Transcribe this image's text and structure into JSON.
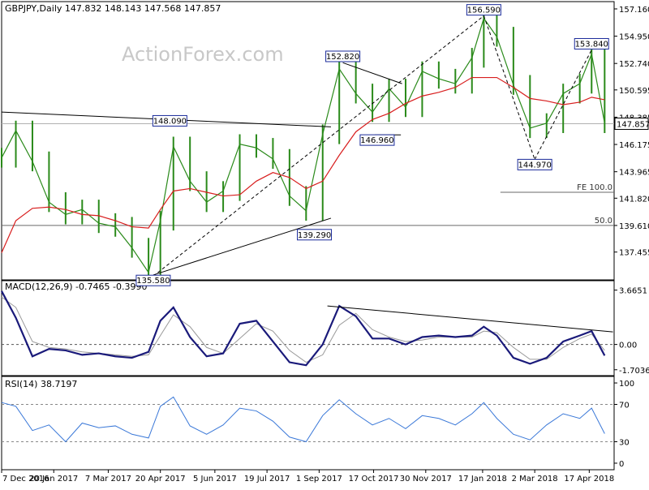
{
  "header": {
    "symbol_line": "GBPJPY,Daily  147.832 148.143 147.568 147.857",
    "watermark": "ActionForex.com"
  },
  "chart_data": [
    {
      "type": "candlestick",
      "panel": "price",
      "y_ticks": [
        137.455,
        139.61,
        141.82,
        143.965,
        146.175,
        148.385,
        150.595,
        152.74,
        154.95,
        157.16
      ],
      "y_tick_labels": [
        "137.455",
        "139.610",
        "141.820",
        "143.965",
        "146.175",
        "148.385",
        "150.595",
        "152.740",
        "154.950",
        "157.160"
      ],
      "ylim": [
        135.2,
        157.75
      ],
      "current_price": 147.857,
      "current_price_label": "147.857",
      "series": [
        {
          "name": "price",
          "x": [
            "2016-12-07",
            "2016-12-19",
            "2017-01-02",
            "2017-01-16",
            "2017-01-30",
            "2017-02-13",
            "2017-02-27",
            "2017-03-13",
            "2017-03-27",
            "2017-04-10",
            "2017-04-20",
            "2017-05-01",
            "2017-05-15",
            "2017-05-29",
            "2017-06-12",
            "2017-06-26",
            "2017-07-10",
            "2017-07-24",
            "2017-08-07",
            "2017-08-21",
            "2017-09-04",
            "2017-09-18",
            "2017-10-02",
            "2017-10-16",
            "2017-10-30",
            "2017-11-13",
            "2017-11-27",
            "2017-12-11",
            "2017-12-25",
            "2018-01-08",
            "2018-01-18",
            "2018-01-29",
            "2018-02-12",
            "2018-02-26",
            "2018-03-12",
            "2018-03-26",
            "2018-04-09",
            "2018-04-19",
            "2018-04-30"
          ],
          "values": [
            145.1,
            147.3,
            144.8,
            141.5,
            140.5,
            140.9,
            139.8,
            139.5,
            137.8,
            135.8,
            140.0,
            146.0,
            143.2,
            141.5,
            142.4,
            146.2,
            145.9,
            145.0,
            142.0,
            140.8,
            147.0,
            152.3,
            150.3,
            148.8,
            150.7,
            149.2,
            152.1,
            151.5,
            151.1,
            153.2,
            156.4,
            154.9,
            151.0,
            147.5,
            147.9,
            150.3,
            151.1,
            153.5,
            147.9
          ]
        },
        {
          "name": "moving_average",
          "x": [
            "2016-12-07",
            "2016-12-19",
            "2017-01-02",
            "2017-01-16",
            "2017-01-30",
            "2017-02-13",
            "2017-02-27",
            "2017-03-13",
            "2017-03-27",
            "2017-04-10",
            "2017-04-20",
            "2017-05-01",
            "2017-05-15",
            "2017-05-29",
            "2017-06-12",
            "2017-06-26",
            "2017-07-10",
            "2017-07-24",
            "2017-08-07",
            "2017-08-21",
            "2017-09-04",
            "2017-09-18",
            "2017-10-02",
            "2017-10-16",
            "2017-10-30",
            "2017-11-13",
            "2017-11-27",
            "2017-12-11",
            "2017-12-25",
            "2018-01-08",
            "2018-01-18",
            "2018-01-29",
            "2018-02-12",
            "2018-02-26",
            "2018-03-12",
            "2018-03-26",
            "2018-04-09",
            "2018-04-19",
            "2018-04-30"
          ],
          "values": [
            137.4,
            140.0,
            141.0,
            141.1,
            140.9,
            140.5,
            140.4,
            140.0,
            139.5,
            139.4,
            140.9,
            142.4,
            142.6,
            142.3,
            142.0,
            142.1,
            143.2,
            143.9,
            143.5,
            142.6,
            143.2,
            145.3,
            147.2,
            148.2,
            148.7,
            149.5,
            150.1,
            150.4,
            150.8,
            151.6,
            151.6,
            151.6,
            150.8,
            149.9,
            149.7,
            149.4,
            149.6,
            150.0,
            149.8
          ]
        }
      ],
      "annotations": [
        {
          "label": "156.590",
          "date": "2018-01-18",
          "value": 156.59
        },
        {
          "label": "153.840",
          "date": "2018-04-19",
          "value": 153.84
        },
        {
          "label": "152.820",
          "date": "2017-09-21",
          "value": 152.82
        },
        {
          "label": "148.090",
          "date": "2017-04-28",
          "value": 148.09
        },
        {
          "label": "146.960",
          "date": "2017-10-20",
          "value": 146.96
        },
        {
          "label": "144.970",
          "date": "2018-03-02",
          "value": 144.97
        },
        {
          "label": "139.290",
          "date": "2017-08-28",
          "value": 139.29
        },
        {
          "label": "135.580",
          "date": "2017-04-14",
          "value": 135.58
        }
      ],
      "levels": [
        {
          "label": "FE 100.0",
          "value": 142.3
        },
        {
          "label": "50.0",
          "value": 139.61
        }
      ],
      "trendlines": [
        {
          "from": {
            "date": "2016-12-07",
            "value": 148.8
          },
          "to": {
            "date": "2017-09-11",
            "value": 147.6
          }
        },
        {
          "from": {
            "date": "2017-04-14",
            "value": 135.6
          },
          "to": {
            "date": "2017-09-11",
            "value": 140.2
          }
        },
        {
          "from": {
            "date": "2017-09-21",
            "value": 152.8
          },
          "to": {
            "date": "2017-11-10",
            "value": 151.1
          }
        },
        {
          "from": {
            "date": "2017-10-18",
            "value": 146.95
          },
          "to": {
            "date": "2017-11-09",
            "value": 146.95
          }
        },
        {
          "from": {
            "date": "2017-04-14",
            "value": 135.5
          },
          "to": {
            "date": "2018-01-18",
            "value": 156.6
          }
        },
        {
          "from": {
            "date": "2018-01-18",
            "value": 156.6
          },
          "to": {
            "date": "2018-03-02",
            "value": 144.97
          }
        },
        {
          "from": {
            "date": "2018-03-02",
            "value": 144.97
          },
          "to": {
            "date": "2018-04-19",
            "value": 153.84
          }
        }
      ]
    },
    {
      "type": "line",
      "panel": "macd",
      "title": "MACD(12,26,9) -0.7465 -0.3990",
      "y_ticks": [
        3.6651,
        0.0,
        -1.7036
      ],
      "y_tick_labels": [
        "3.6651",
        "0.00",
        "-1.7036"
      ],
      "ylim": [
        -2.1,
        4.3
      ],
      "series": [
        {
          "name": "macd",
          "x": [
            "2016-12-07",
            "2016-12-19",
            "2017-01-02",
            "2017-01-16",
            "2017-01-30",
            "2017-02-13",
            "2017-02-27",
            "2017-03-13",
            "2017-03-27",
            "2017-04-10",
            "2017-04-20",
            "2017-05-01",
            "2017-05-15",
            "2017-05-29",
            "2017-06-12",
            "2017-06-26",
            "2017-07-10",
            "2017-07-24",
            "2017-08-07",
            "2017-08-21",
            "2017-09-04",
            "2017-09-18",
            "2017-10-02",
            "2017-10-16",
            "2017-10-30",
            "2017-11-13",
            "2017-11-27",
            "2017-12-11",
            "2017-12-25",
            "2018-01-08",
            "2018-01-18",
            "2018-01-29",
            "2018-02-12",
            "2018-02-26",
            "2018-03-12",
            "2018-03-26",
            "2018-04-09",
            "2018-04-19",
            "2018-04-30"
          ],
          "values": [
            3.6,
            1.8,
            -0.8,
            -0.3,
            -0.4,
            -0.7,
            -0.6,
            -0.8,
            -0.9,
            -0.5,
            1.6,
            2.5,
            0.5,
            -0.8,
            -0.6,
            1.4,
            1.6,
            0.2,
            -1.2,
            -1.4,
            0.0,
            2.6,
            1.9,
            0.4,
            0.4,
            0.0,
            0.5,
            0.6,
            0.5,
            0.6,
            1.2,
            0.6,
            -0.9,
            -1.3,
            -0.9,
            0.2,
            0.6,
            0.9,
            -0.75
          ]
        },
        {
          "name": "signal",
          "x": [
            "2016-12-07",
            "2016-12-19",
            "2017-01-02",
            "2017-01-16",
            "2017-01-30",
            "2017-02-13",
            "2017-02-27",
            "2017-03-13",
            "2017-03-27",
            "2017-04-10",
            "2017-04-20",
            "2017-05-01",
            "2017-05-15",
            "2017-05-29",
            "2017-06-12",
            "2017-06-26",
            "2017-07-10",
            "2017-07-24",
            "2017-08-07",
            "2017-08-21",
            "2017-09-04",
            "2017-09-18",
            "2017-10-02",
            "2017-10-16",
            "2017-10-30",
            "2017-11-13",
            "2017-11-27",
            "2017-12-11",
            "2017-12-25",
            "2018-01-08",
            "2018-01-18",
            "2018-01-29",
            "2018-02-12",
            "2018-02-26",
            "2018-03-12",
            "2018-03-26",
            "2018-04-09",
            "2018-04-19",
            "2018-04-30"
          ],
          "values": [
            3.2,
            2.5,
            0.2,
            -0.2,
            -0.3,
            -0.5,
            -0.6,
            -0.7,
            -0.8,
            -0.7,
            0.6,
            2.0,
            1.2,
            -0.2,
            -0.6,
            0.4,
            1.4,
            0.9,
            -0.4,
            -1.2,
            -0.7,
            1.3,
            2.1,
            1.0,
            0.5,
            0.2,
            0.3,
            0.5,
            0.5,
            0.5,
            0.9,
            0.8,
            -0.2,
            -1.0,
            -1.0,
            -0.2,
            0.4,
            0.7,
            -0.4
          ]
        }
      ],
      "trendlines": [
        {
          "from": {
            "date": "2017-09-08",
            "value": 2.6
          },
          "to": {
            "date": "2018-05-07",
            "value": 0.85
          }
        }
      ]
    },
    {
      "type": "line",
      "panel": "rsi",
      "title": "RSI(14) 38.7197",
      "y_ticks": [
        70,
        30
      ],
      "y_tick_labels": [
        "70",
        "30"
      ],
      "y_axis_labels": [
        {
          "value": 93,
          "label": "100"
        },
        {
          "value": 70,
          "label": "70"
        },
        {
          "value": 30,
          "label": "30"
        },
        {
          "value": 7,
          "label": "0"
        }
      ],
      "ylim": [
        0,
        100
      ],
      "series": [
        {
          "name": "rsi",
          "x": [
            "2016-12-07",
            "2016-12-19",
            "2017-01-02",
            "2017-01-16",
            "2017-01-30",
            "2017-02-13",
            "2017-02-27",
            "2017-03-13",
            "2017-03-27",
            "2017-04-10",
            "2017-04-20",
            "2017-05-01",
            "2017-05-15",
            "2017-05-29",
            "2017-06-12",
            "2017-06-26",
            "2017-07-10",
            "2017-07-24",
            "2017-08-07",
            "2017-08-21",
            "2017-09-04",
            "2017-09-18",
            "2017-10-02",
            "2017-10-16",
            "2017-10-30",
            "2017-11-13",
            "2017-11-27",
            "2017-12-11",
            "2017-12-25",
            "2018-01-08",
            "2018-01-18",
            "2018-01-29",
            "2018-02-12",
            "2018-02-26",
            "2018-03-12",
            "2018-03-26",
            "2018-04-09",
            "2018-04-19",
            "2018-04-30"
          ],
          "values": [
            72,
            68,
            42,
            48,
            30,
            50,
            45,
            47,
            38,
            34,
            68,
            78,
            47,
            38,
            48,
            66,
            63,
            52,
            35,
            30,
            58,
            75,
            60,
            48,
            55,
            44,
            58,
            55,
            48,
            60,
            72,
            55,
            38,
            32,
            48,
            60,
            55,
            66,
            38.7
          ]
        }
      ]
    }
  ],
  "x_axis": {
    "ticks": [
      {
        "date": "2016-12-07",
        "label": "7 Dec 2016"
      },
      {
        "date": "2017-01-20",
        "label": "20 Jan 2017"
      },
      {
        "date": "2017-03-07",
        "label": "7 Mar 2017"
      },
      {
        "date": "2017-04-20",
        "label": "20 Apr 2017"
      },
      {
        "date": "2017-06-05",
        "label": "5 Jun 2017"
      },
      {
        "date": "2017-07-19",
        "label": "19 Jul 2017"
      },
      {
        "date": "2017-09-01",
        "label": "1 Sep 2017"
      },
      {
        "date": "2017-10-17",
        "label": "17 Oct 2017"
      },
      {
        "date": "2017-11-30",
        "label": "30 Nov 2017"
      },
      {
        "date": "2018-01-17",
        "label": "17 Jan 2018"
      },
      {
        "date": "2018-03-02",
        "label": "2 Mar 2018"
      },
      {
        "date": "2018-04-17",
        "label": "17 Apr 2018"
      }
    ],
    "range": [
      "2016-12-07",
      "2018-05-08"
    ]
  },
  "colors": {
    "price": "#2a8a1a",
    "moving_average": "#d81e1e",
    "macd": "#1a1a7a",
    "signal": "#9a9a9a",
    "rsi": "#3a78d8",
    "annotation_border": "#1a2a9a",
    "level_line": "#6a6a6a",
    "price_line": "#b0b0b0",
    "trendline": "#000000"
  }
}
